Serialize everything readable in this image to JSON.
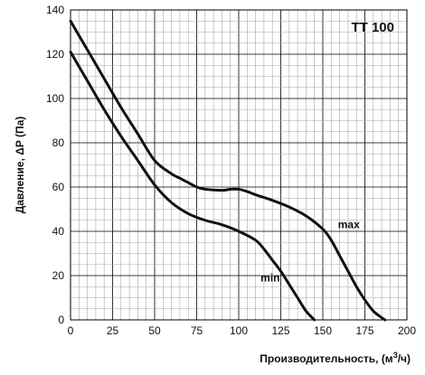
{
  "chart_data": {
    "type": "line",
    "title": "TT 100",
    "xlabel": "Производительность, (м",
    "xlabel_sup": "3",
    "xlabel_tail": "/ч)",
    "ylabel": "Давление, ΔP (Па)",
    "xlim": [
      0,
      200
    ],
    "ylim": [
      0,
      140
    ],
    "x_ticks": [
      "0",
      "25",
      "50",
      "75",
      "100",
      "125",
      "150",
      "175",
      "200"
    ],
    "y_ticks": [
      "0",
      "20",
      "40",
      "60",
      "80",
      "100",
      "120",
      "140"
    ],
    "grid": true,
    "series": [
      {
        "name": "max",
        "x": [
          0,
          10,
          20,
          30,
          40,
          50,
          60,
          65,
          70,
          75,
          80,
          90,
          95,
          100,
          105,
          110,
          120,
          130,
          140,
          150,
          155,
          160,
          165,
          170,
          175,
          180,
          185,
          187
        ],
        "y": [
          135,
          122,
          109,
          96,
          84,
          72,
          66,
          64,
          62,
          60,
          59,
          58.5,
          59,
          59,
          58,
          56.5,
          54,
          51,
          47,
          41,
          36,
          29,
          22,
          15,
          9,
          4,
          1,
          0
        ]
      },
      {
        "name": "min",
        "x": [
          0,
          10,
          20,
          30,
          40,
          50,
          60,
          70,
          80,
          90,
          100,
          110,
          115,
          120,
          125,
          130,
          135,
          140,
          145
        ],
        "y": [
          121,
          108,
          95,
          83,
          72,
          61,
          53,
          48,
          45,
          43,
          40,
          36,
          32,
          27,
          22,
          16,
          10,
          4,
          0
        ]
      }
    ],
    "curve_labels": [
      {
        "text": "max",
        "series": "max"
      },
      {
        "text": "min",
        "series": "min"
      }
    ]
  }
}
